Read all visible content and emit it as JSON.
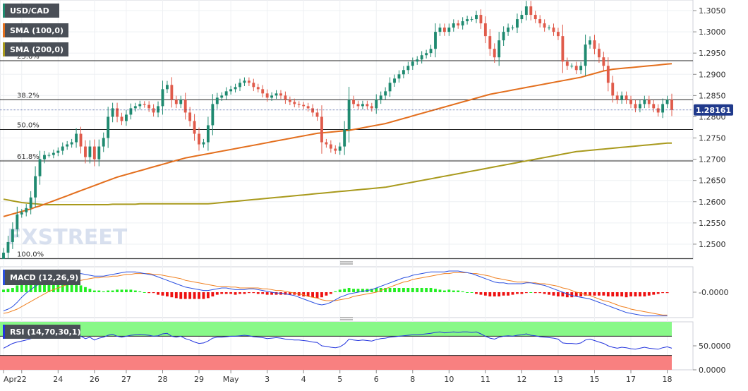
{
  "instrument_label": "USD/CAD",
  "sma100_label": "SMA (100,0)",
  "sma200_label": "SMA (200,0)",
  "macd_label": "MACD (12,26,9)",
  "rsi_label": "RSI (14,70,30,1)",
  "watermark": "FXSTREET",
  "last_price_label": "1.28161",
  "colors": {
    "bull": "#1f8a70",
    "bear": "#e05b4b",
    "sma100": "#e36f1e",
    "sma200": "#a99a1d",
    "macd_line": "#2b50e0",
    "signal_line": "#f08020",
    "hist_pos": "#22ee22",
    "hist_neg": "#ee1111",
    "rsi_line": "#2233dd",
    "rsi_over": "#88f888",
    "rsi_under": "#f88080",
    "price_tag": "#203a8c"
  },
  "chart_data": [
    {
      "type": "candlestick",
      "title": "USD/CAD",
      "ylim": [
        1.2465,
        1.3075
      ],
      "y_ticks": [
        1.25,
        1.255,
        1.26,
        1.265,
        1.27,
        1.275,
        1.28,
        1.285,
        1.29,
        1.295,
        1.3,
        1.305
      ],
      "y_tick_labels": [
        "1.2500",
        "1.2550",
        "1.2600",
        "1.2650",
        "1.2700",
        "1.2750",
        "1.2800",
        "1.2850",
        "1.2900",
        "1.2950",
        "1.3000",
        "1.3050"
      ],
      "x_tick_labels": [
        "Apr",
        "22",
        "24",
        "26",
        "27",
        "28",
        "29",
        "May",
        "3",
        "4",
        "5",
        "6",
        "8",
        "10",
        "11",
        "12",
        "13",
        "15",
        "17",
        "18"
      ],
      "x_tick_index": [
        0,
        4,
        12,
        20,
        27,
        35,
        43,
        50,
        58,
        66,
        74,
        82,
        90,
        98,
        106,
        114,
        122,
        130,
        138,
        146
      ],
      "fib_levels": [
        {
          "label": "23.6%",
          "value": 1.2932
        },
        {
          "label": "38.2%",
          "value": 1.284
        },
        {
          "label": "50.0%",
          "value": 1.277
        },
        {
          "label": "61.8%",
          "value": 1.2696
        },
        {
          "label": "100.0%",
          "value": 1.2466
        }
      ],
      "last_price": 1.28161,
      "close": [
        1.248,
        1.2505,
        1.2535,
        1.257,
        1.2575,
        1.2585,
        1.261,
        1.266,
        1.27,
        1.271,
        1.271,
        1.2715,
        1.272,
        1.273,
        1.2735,
        1.274,
        1.276,
        1.273,
        1.2705,
        1.273,
        1.27,
        1.273,
        1.275,
        1.28,
        1.282,
        1.28,
        1.279,
        1.2805,
        1.282,
        1.2825,
        1.283,
        1.2828,
        1.282,
        1.281,
        1.2825,
        1.2865,
        1.2875,
        1.284,
        1.283,
        1.284,
        1.281,
        1.279,
        1.276,
        1.2735,
        1.274,
        1.278,
        1.283,
        1.2845,
        1.285,
        1.286,
        1.2865,
        1.287,
        1.288,
        1.2885,
        1.288,
        1.287,
        1.2865,
        1.2855,
        1.2845,
        1.285,
        1.2855,
        1.285,
        1.284,
        1.2835,
        1.283,
        1.2828,
        1.2825,
        1.282,
        1.281,
        1.28,
        1.274,
        1.2735,
        1.2725,
        1.272,
        1.273,
        1.277,
        1.284,
        1.283,
        1.2825,
        1.283,
        1.2825,
        1.282,
        1.284,
        1.285,
        1.286,
        1.288,
        1.289,
        1.29,
        1.291,
        1.292,
        1.293,
        1.2935,
        1.2945,
        1.295,
        1.296,
        1.3,
        1.301,
        1.3,
        1.301,
        1.302,
        1.3015,
        1.3025,
        1.303,
        1.303,
        1.304,
        1.302,
        1.299,
        1.296,
        1.294,
        1.298,
        1.3,
        1.301,
        1.301,
        1.303,
        1.304,
        1.306,
        1.304,
        1.303,
        1.302,
        1.301,
        1.301,
        1.3,
        1.299,
        1.293,
        1.292,
        1.292,
        1.291,
        1.292,
        1.297,
        1.298,
        1.296,
        1.294,
        1.292,
        1.288,
        1.285,
        1.284,
        1.285,
        1.284,
        1.283,
        1.282,
        1.283,
        1.284,
        1.283,
        1.282,
        1.281,
        1.283,
        1.284,
        1.2816
      ],
      "sma100": [
        1.2565,
        1.2568,
        1.2571,
        1.2574,
        1.2577,
        1.258,
        1.2583,
        1.2587,
        1.259,
        1.2594,
        1.2598,
        1.2602,
        1.2606,
        1.261,
        1.2614,
        1.2618,
        1.2622,
        1.2626,
        1.263,
        1.2634,
        1.2638,
        1.2642,
        1.2646,
        1.265,
        1.2654,
        1.2658,
        1.2661,
        1.2664,
        1.2667,
        1.267,
        1.2673,
        1.2676,
        1.2679,
        1.2682,
        1.2685,
        1.2688,
        1.2691,
        1.2694,
        1.2697,
        1.27,
        1.2703,
        1.2705,
        1.2707,
        1.2709,
        1.2711,
        1.2713,
        1.2715,
        1.2717,
        1.2719,
        1.2721,
        1.2723,
        1.2725,
        1.2727,
        1.2729,
        1.2731,
        1.2733,
        1.2735,
        1.2737,
        1.2739,
        1.2741,
        1.2743,
        1.2745,
        1.2747,
        1.2749,
        1.2751,
        1.2753,
        1.2755,
        1.2757,
        1.2759,
        1.2761,
        1.2762,
        1.2763,
        1.2764,
        1.2765,
        1.2766,
        1.2767,
        1.2768,
        1.277,
        1.2772,
        1.2774,
        1.2776,
        1.2778,
        1.278,
        1.2782,
        1.2784,
        1.2787,
        1.279,
        1.2793,
        1.2796,
        1.2799,
        1.2802,
        1.2805,
        1.2808,
        1.2811,
        1.2814,
        1.2817,
        1.282,
        1.2823,
        1.2826,
        1.2829,
        1.2832,
        1.2835,
        1.2838,
        1.2841,
        1.2844,
        1.2847,
        1.285,
        1.2853,
        1.2855,
        1.2857,
        1.2859,
        1.2861,
        1.2863,
        1.2865,
        1.2867,
        1.2869,
        1.2871,
        1.2873,
        1.2875,
        1.2877,
        1.2879,
        1.2881,
        1.2883,
        1.2885,
        1.2887,
        1.2889,
        1.2891,
        1.2893,
        1.2896,
        1.2899,
        1.2902,
        1.2905,
        1.2908,
        1.291,
        1.2912,
        1.2913,
        1.2914,
        1.2915,
        1.2916,
        1.2917,
        1.2918,
        1.2919,
        1.292,
        1.2921,
        1.2922,
        1.2923,
        1.2924,
        1.2925
      ],
      "sma200": [
        1.2606,
        1.2604,
        1.2602,
        1.26,
        1.2598,
        1.2597,
        1.2596,
        1.2595,
        1.2594,
        1.2593,
        1.2593,
        1.2593,
        1.2593,
        1.2593,
        1.2593,
        1.2593,
        1.2593,
        1.2593,
        1.2593,
        1.2593,
        1.2593,
        1.2593,
        1.2593,
        1.2593,
        1.2594,
        1.2594,
        1.2594,
        1.2594,
        1.2594,
        1.2594,
        1.2595,
        1.2595,
        1.2595,
        1.2595,
        1.2595,
        1.2595,
        1.2595,
        1.2595,
        1.2595,
        1.2595,
        1.2595,
        1.2595,
        1.2595,
        1.2595,
        1.2595,
        1.2595,
        1.2596,
        1.2597,
        1.2598,
        1.2599,
        1.26,
        1.2601,
        1.2602,
        1.2603,
        1.2604,
        1.2605,
        1.2606,
        1.2607,
        1.2608,
        1.2609,
        1.261,
        1.2611,
        1.2612,
        1.2613,
        1.2614,
        1.2615,
        1.2616,
        1.2617,
        1.2618,
        1.2619,
        1.262,
        1.2621,
        1.2622,
        1.2623,
        1.2624,
        1.2625,
        1.2626,
        1.2627,
        1.2628,
        1.2629,
        1.263,
        1.2631,
        1.2632,
        1.2633,
        1.2634,
        1.2636,
        1.2638,
        1.264,
        1.2642,
        1.2644,
        1.2646,
        1.2648,
        1.265,
        1.2652,
        1.2654,
        1.2656,
        1.2658,
        1.266,
        1.2662,
        1.2664,
        1.2666,
        1.2668,
        1.267,
        1.2672,
        1.2674,
        1.2676,
        1.2678,
        1.268,
        1.2682,
        1.2684,
        1.2686,
        1.2688,
        1.269,
        1.2692,
        1.2694,
        1.2696,
        1.2698,
        1.27,
        1.2702,
        1.2704,
        1.2706,
        1.2708,
        1.271,
        1.2712,
        1.2714,
        1.2716,
        1.2718,
        1.2719,
        1.272,
        1.2721,
        1.2722,
        1.2723,
        1.2724,
        1.2725,
        1.2726,
        1.2727,
        1.2728,
        1.2729,
        1.273,
        1.2731,
        1.2732,
        1.2733,
        1.2734,
        1.2735,
        1.2736,
        1.2737,
        1.2738,
        1.2738
      ]
    },
    {
      "type": "line",
      "title": "MACD (12,26,9)",
      "y_ticks": [
        0
      ],
      "y_tick_labels": [
        "-0.0000"
      ],
      "ylim": [
        -30,
        30
      ],
      "series": [
        {
          "name": "MACD",
          "values": [
            -22,
            -20,
            -17,
            -12,
            -6,
            -1,
            3,
            7,
            10,
            13,
            15,
            17,
            18,
            19,
            20,
            21,
            22,
            22,
            21,
            20,
            19,
            19,
            19,
            20,
            21,
            22,
            23,
            24,
            24,
            24,
            23,
            22,
            21,
            20,
            18,
            16,
            14,
            12,
            10,
            8,
            6,
            5,
            4,
            3,
            2,
            2,
            3,
            4,
            5,
            5,
            4,
            3,
            3,
            3,
            4,
            4,
            3,
            2,
            1,
            0,
            -1,
            -1,
            -2,
            -3,
            -4,
            -6,
            -8,
            -10,
            -12,
            -14,
            -15,
            -14,
            -12,
            -9,
            -6,
            -4,
            -2,
            -1,
            0,
            1,
            2,
            3,
            5,
            7,
            9,
            11,
            13,
            15,
            17,
            18,
            20,
            21,
            22,
            23,
            24,
            24,
            24,
            24,
            25,
            25,
            25,
            24,
            23,
            22,
            20,
            18,
            16,
            14,
            12,
            11,
            11,
            10,
            10,
            10,
            10,
            11,
            11,
            10,
            9,
            8,
            6,
            4,
            2,
            0,
            -2,
            -4,
            -5,
            -6,
            -7,
            -8,
            -10,
            -12,
            -14,
            -16,
            -18,
            -20,
            -22,
            -24,
            -25,
            -26,
            -27,
            -28,
            -28,
            -28,
            -28,
            -28,
            -28
          ]
        },
        {
          "name": "Signal",
          "values": [
            -25,
            -24,
            -22,
            -20,
            -17,
            -14,
            -11,
            -8,
            -5,
            -2,
            1,
            3,
            5,
            7,
            9,
            11,
            12,
            14,
            15,
            16,
            17,
            17,
            18,
            18,
            19,
            19,
            20,
            21,
            21,
            22,
            22,
            22,
            22,
            21,
            21,
            20,
            19,
            18,
            17,
            16,
            14,
            13,
            12,
            11,
            10,
            9,
            8,
            7,
            7,
            7,
            6,
            6,
            5,
            5,
            5,
            5,
            5,
            4,
            4,
            3,
            2,
            2,
            1,
            0,
            -1,
            -2,
            -3,
            -5,
            -6,
            -7,
            -9,
            -10,
            -10,
            -10,
            -9,
            -8,
            -7,
            -5,
            -4,
            -3,
            -2,
            -1,
            0,
            2,
            4,
            6,
            8,
            10,
            12,
            13,
            15,
            16,
            17,
            18,
            19,
            20,
            21,
            22,
            22,
            23,
            23,
            23,
            23,
            22,
            22,
            21,
            20,
            19,
            17,
            16,
            15,
            14,
            13,
            12,
            12,
            12,
            11,
            11,
            10,
            10,
            9,
            8,
            7,
            5,
            4,
            2,
            0,
            -1,
            -3,
            -4,
            -6,
            -8,
            -10,
            -11,
            -13,
            -15,
            -17,
            -18,
            -20,
            -21,
            -22,
            -23,
            -24,
            -25,
            -26,
            -27,
            -27
          ]
        }
      ],
      "histogram": [
        3,
        4,
        5,
        8,
        11,
        13,
        14,
        15,
        15,
        15,
        14,
        14,
        13,
        12,
        11,
        10,
        10,
        8,
        6,
        4,
        2,
        2,
        1,
        2,
        2,
        3,
        3,
        3,
        3,
        2,
        1,
        0,
        -1,
        -1,
        -3,
        -4,
        -5,
        -6,
        -7,
        -8,
        -8,
        -8,
        -8,
        -8,
        -8,
        -7,
        -5,
        -3,
        -2,
        -2,
        -2,
        -3,
        -2,
        -2,
        -1,
        -1,
        -2,
        -2,
        -3,
        -3,
        -3,
        -3,
        -3,
        -3,
        -3,
        -4,
        -5,
        -5,
        -6,
        -7,
        -6,
        -4,
        -2,
        1,
        3,
        4,
        5,
        4,
        4,
        4,
        4,
        4,
        5,
        5,
        5,
        5,
        5,
        5,
        5,
        5,
        5,
        5,
        5,
        5,
        5,
        4,
        3,
        2,
        3,
        2,
        2,
        1,
        0,
        0,
        -2,
        -3,
        -4,
        -5,
        -5,
        -5,
        -4,
        -4,
        -3,
        -2,
        -2,
        -1,
        0,
        -1,
        -1,
        -2,
        -3,
        -4,
        -5,
        -5,
        -6,
        -6,
        -5,
        -5,
        -4,
        -4,
        -4,
        -4,
        -4,
        -5,
        -5,
        -5,
        -5,
        -6,
        -5,
        -5,
        -5,
        -5,
        -4,
        -3,
        -2,
        -1,
        -1
      ]
    },
    {
      "type": "line",
      "title": "RSI (14,70,30,1)",
      "ylim": [
        0,
        100
      ],
      "y_ticks": [
        0,
        50
      ],
      "y_tick_labels": [
        "0.0000",
        "50.0000"
      ],
      "overbought": 70,
      "oversold": 30,
      "series": [
        {
          "name": "RSI",
          "values": [
            45,
            50,
            55,
            58,
            60,
            62,
            65,
            68,
            70,
            72,
            73,
            74,
            75,
            74,
            73,
            72,
            73,
            70,
            65,
            68,
            62,
            66,
            68,
            72,
            74,
            70,
            68,
            70,
            72,
            73,
            74,
            73,
            72,
            70,
            71,
            75,
            76,
            70,
            68,
            70,
            65,
            62,
            58,
            55,
            56,
            60,
            66,
            68,
            68,
            69,
            70,
            70,
            71,
            72,
            71,
            69,
            68,
            67,
            65,
            66,
            67,
            66,
            64,
            63,
            62,
            62,
            61,
            60,
            58,
            57,
            50,
            49,
            47,
            46,
            48,
            54,
            64,
            62,
            61,
            62,
            61,
            60,
            63,
            65,
            66,
            68,
            69,
            70,
            71,
            72,
            73,
            73,
            74,
            75,
            76,
            78,
            79,
            77,
            78,
            79,
            78,
            79,
            79,
            78,
            79,
            75,
            70,
            66,
            64,
            68,
            70,
            71,
            70,
            72,
            73,
            75,
            72,
            71,
            69,
            68,
            67,
            66,
            64,
            56,
            55,
            55,
            54,
            56,
            62,
            64,
            61,
            58,
            55,
            50,
            47,
            45,
            47,
            46,
            44,
            43,
            45,
            47,
            45,
            44,
            43,
            46,
            48,
            45
          ]
        }
      ]
    }
  ]
}
